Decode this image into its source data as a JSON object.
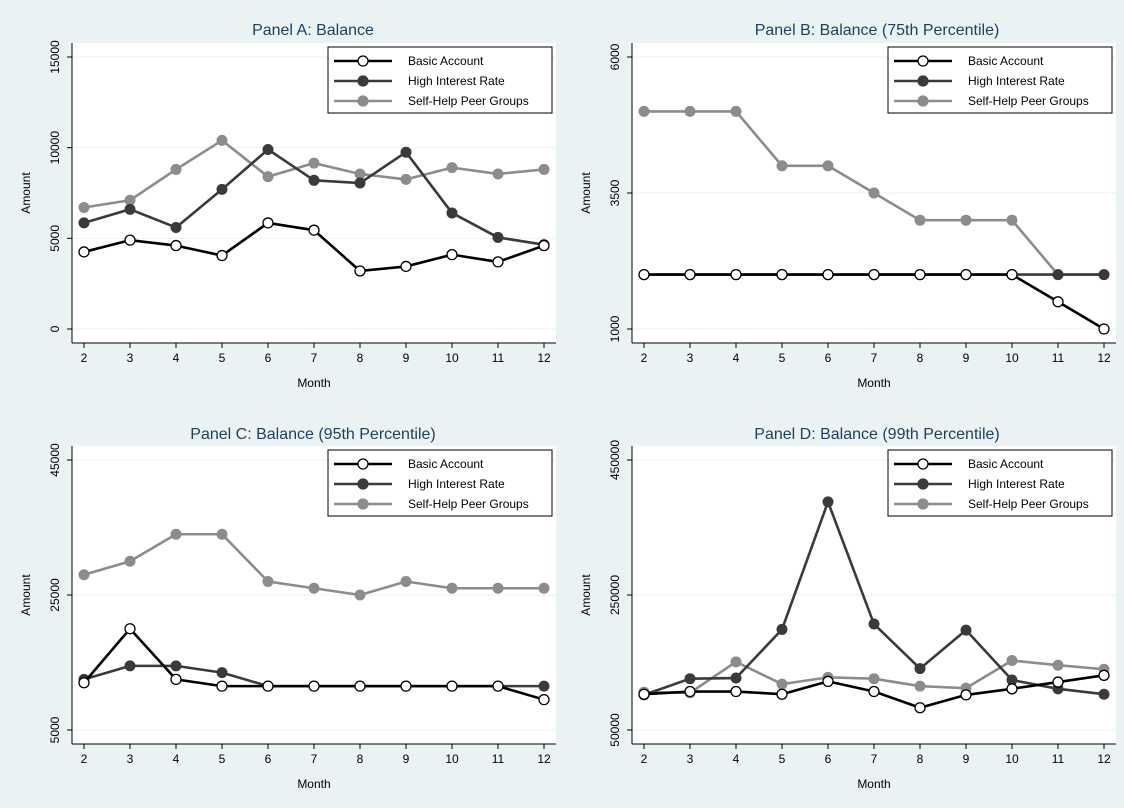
{
  "colors": {
    "background": "#eaf2f3",
    "plot_area": "#ffffff",
    "grid": "#eaf2f3",
    "title": "#1e3f5a",
    "basic": "#000000",
    "high": "#3a3a3a",
    "peer": "#8c8c8c"
  },
  "chart_data": [
    {
      "type": "line",
      "title": "Panel A: Balance",
      "xlabel": "Month",
      "ylabel": "Amount",
      "x": [
        2,
        3,
        4,
        5,
        6,
        7,
        8,
        9,
        10,
        11,
        12
      ],
      "xticks": [
        "2",
        "3",
        "4",
        "5",
        "6",
        "7",
        "8",
        "9",
        "10",
        "11",
        "12"
      ],
      "ylim": [
        0,
        15000
      ],
      "yticks": [
        "0",
        "5000",
        "10000",
        "15000"
      ],
      "grid": true,
      "legend_position": "top-right",
      "series": [
        {
          "name": "Basic Account",
          "marker": "hollow",
          "values": [
            4250,
            4900,
            4600,
            4050,
            5850,
            5450,
            3200,
            3450,
            4100,
            3700,
            4600
          ]
        },
        {
          "name": "High Interest Rate",
          "marker": "filled",
          "values": [
            5850,
            6600,
            5600,
            7700,
            9900,
            8200,
            8050,
            9750,
            6400,
            5050,
            4650
          ]
        },
        {
          "name": "Self-Help Peer Groups",
          "marker": "filled",
          "values": [
            6700,
            7100,
            8800,
            10400,
            8400,
            9150,
            8550,
            8250,
            8900,
            8550,
            8800
          ]
        }
      ]
    },
    {
      "type": "line",
      "title": "Panel B: Balance (75th Percentile)",
      "xlabel": "Month",
      "ylabel": "Amount",
      "x": [
        2,
        3,
        4,
        5,
        6,
        7,
        8,
        9,
        10,
        11,
        12
      ],
      "xticks": [
        "2",
        "3",
        "4",
        "5",
        "6",
        "7",
        "8",
        "9",
        "10",
        "11",
        "12"
      ],
      "ylim": [
        1000,
        6000
      ],
      "yticks": [
        "1000",
        "3500",
        "6000"
      ],
      "grid": true,
      "legend_position": "top-right",
      "series": [
        {
          "name": "Basic Account",
          "marker": "hollow",
          "values": [
            2000,
            2000,
            2000,
            2000,
            2000,
            2000,
            2000,
            2000,
            2000,
            1500,
            1000
          ]
        },
        {
          "name": "High Interest Rate",
          "marker": "filled",
          "values": [
            2000,
            2000,
            2000,
            2000,
            2000,
            2000,
            2000,
            2000,
            2000,
            2000,
            2000
          ]
        },
        {
          "name": "Self-Help Peer Groups",
          "marker": "filled",
          "values": [
            5000,
            5000,
            5000,
            4000,
            4000,
            3500,
            3000,
            3000,
            3000,
            2000,
            2000
          ]
        }
      ]
    },
    {
      "type": "line",
      "title": "Panel C: Balance (95th Percentile)",
      "xlabel": "Month",
      "ylabel": "Amount",
      "x": [
        2,
        3,
        4,
        5,
        6,
        7,
        8,
        9,
        10,
        11,
        12
      ],
      "xticks": [
        "2",
        "3",
        "4",
        "5",
        "6",
        "7",
        "8",
        "9",
        "10",
        "11",
        "12"
      ],
      "ylim": [
        5000,
        45000
      ],
      "yticks": [
        "5000",
        "25000",
        "45000"
      ],
      "grid": true,
      "legend_position": "top-right",
      "series": [
        {
          "name": "Basic Account",
          "marker": "hollow",
          "values": [
            12000,
            20000,
            12500,
            11500,
            11500,
            11500,
            11500,
            11500,
            11500,
            11500,
            9500
          ]
        },
        {
          "name": "High Interest Rate",
          "marker": "filled",
          "values": [
            12500,
            14500,
            14500,
            13500,
            11500,
            11500,
            11500,
            11500,
            11500,
            11500,
            11500
          ]
        },
        {
          "name": "Self-Help Peer Groups",
          "marker": "filled",
          "values": [
            28000,
            30000,
            34000,
            34000,
            27000,
            26000,
            25000,
            27000,
            26000,
            26000,
            26000
          ]
        }
      ]
    },
    {
      "type": "line",
      "title": "Panel D: Balance (99th Percentile)",
      "xlabel": "Month",
      "ylabel": "Amount",
      "x": [
        2,
        3,
        4,
        5,
        6,
        7,
        8,
        9,
        10,
        11,
        12
      ],
      "xticks": [
        "2",
        "3",
        "4",
        "5",
        "6",
        "7",
        "8",
        "9",
        "10",
        "11",
        "12"
      ],
      "ylim": [
        50000,
        450000
      ],
      "yticks": [
        "50000",
        "250000",
        "450000"
      ],
      "grid": true,
      "legend_position": "top-right",
      "series": [
        {
          "name": "Basic Account",
          "marker": "hollow",
          "values": [
            103000,
            107000,
            107000,
            103000,
            122000,
            107000,
            83000,
            102000,
            111000,
            121000,
            131000
          ]
        },
        {
          "name": "High Interest Rate",
          "marker": "filled",
          "values": [
            102000,
            126000,
            127000,
            199000,
            388000,
            207000,
            141000,
            198000,
            124000,
            111000,
            103000
          ]
        },
        {
          "name": "Self-Help Peer Groups",
          "marker": "filled",
          "values": [
            106000,
            105000,
            151000,
            118000,
            128000,
            126000,
            115000,
            112000,
            153000,
            146000,
            140000
          ]
        }
      ]
    }
  ]
}
